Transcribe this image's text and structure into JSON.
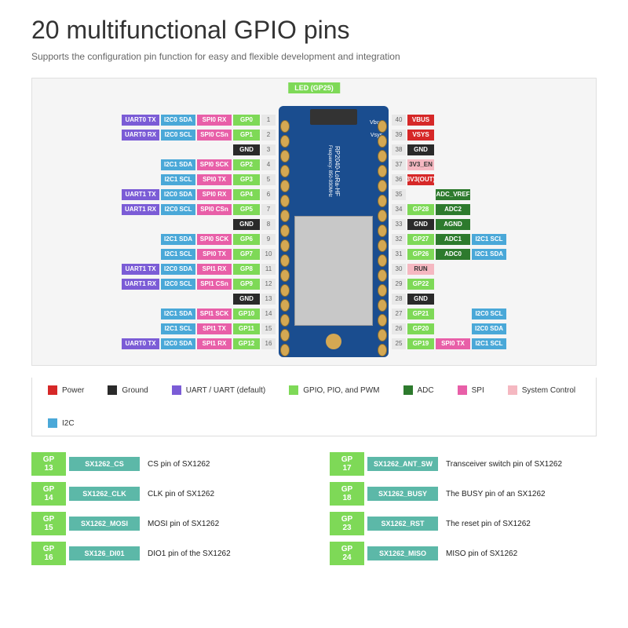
{
  "title": "20 multifunctional GPIO pins",
  "subtitle": "Supports the configuration pin function for easy and flexible development and integration",
  "led": "LED (GP25)",
  "colors": {
    "uart": "#7b5cd6",
    "uart_def": "#5a3fb8",
    "i2c": "#4aa8d8",
    "spi": "#e85fa8",
    "gpio": "#7ed957",
    "adc": "#2d7a2d",
    "gnd": "#2a2a2a",
    "power": "#d62828",
    "sysctl": "#f5b8c1",
    "num": "#e8e8e8",
    "power_fill": "#d62828",
    "sx": "#5cb8a8"
  },
  "left_pins": [
    {
      "n": "1",
      "c4": "GP0",
      "c3": "SPI0 RX",
      "c2": "I2C0 SDA",
      "c1": "UART0 TX",
      "t": [
        "uart",
        "i2c",
        "spi",
        "gpio"
      ]
    },
    {
      "n": "2",
      "c4": "GP1",
      "c3": "SPI0 CSn",
      "c2": "I2C0 SCL",
      "c1": "UART0 RX",
      "t": [
        "uart",
        "i2c",
        "spi",
        "gpio"
      ]
    },
    {
      "n": "3",
      "c4": "GND",
      "t": [
        "gnd"
      ],
      "span": 1
    },
    {
      "n": "4",
      "c4": "GP2",
      "c3": "SPI0 SCK",
      "c2": "I2C1 SDA",
      "t": [
        "i2c",
        "spi",
        "gpio"
      ]
    },
    {
      "n": "5",
      "c4": "GP3",
      "c3": "SPI0 TX",
      "c2": "I2C1 SCL",
      "t": [
        "i2c",
        "spi",
        "gpio"
      ]
    },
    {
      "n": "6",
      "c4": "GP4",
      "c3": "SPI0 RX",
      "c2": "I2C0 SDA",
      "c1": "UART1 TX",
      "t": [
        "uart",
        "i2c",
        "spi",
        "gpio"
      ]
    },
    {
      "n": "7",
      "c4": "GP5",
      "c3": "SPI0 CSn",
      "c2": "I2C0 SCL",
      "c1": "UART1 RX",
      "t": [
        "uart",
        "i2c",
        "spi",
        "gpio"
      ]
    },
    {
      "n": "8",
      "c4": "GND",
      "t": [
        "gnd"
      ],
      "span": 1
    },
    {
      "n": "9",
      "c4": "GP6",
      "c3": "SPI0 SCK",
      "c2": "I2C1 SDA",
      "t": [
        "i2c",
        "spi",
        "gpio"
      ]
    },
    {
      "n": "10",
      "c4": "GP7",
      "c3": "SPI0 TX",
      "c2": "I2C1 SCL",
      "t": [
        "i2c",
        "spi",
        "gpio"
      ]
    },
    {
      "n": "11",
      "c4": "GP8",
      "c3": "SPI1 RX",
      "c2": "I2C0 SDA",
      "c1": "UART1 TX",
      "t": [
        "uart",
        "i2c",
        "spi",
        "gpio"
      ]
    },
    {
      "n": "12",
      "c4": "GP9",
      "c3": "SPI1 CSn",
      "c2": "I2C0 SCL",
      "c1": "UART1 RX",
      "t": [
        "uart",
        "i2c",
        "spi",
        "gpio"
      ]
    },
    {
      "n": "13",
      "c4": "GND",
      "t": [
        "gnd"
      ],
      "span": 1
    },
    {
      "n": "14",
      "c4": "GP10",
      "c3": "SPI1 SCK",
      "c2": "I2C1 SDA",
      "t": [
        "i2c",
        "spi",
        "gpio"
      ]
    },
    {
      "n": "15",
      "c4": "GP11",
      "c3": "SPI1 TX",
      "c2": "I2C1 SCL",
      "t": [
        "i2c",
        "spi",
        "gpio"
      ]
    },
    {
      "n": "16",
      "c4": "GP12",
      "c3": "SPI1 RX",
      "c2": "I2C0 SDA",
      "c1": "UART0 TX",
      "t": [
        "uart",
        "i2c",
        "spi",
        "gpio"
      ]
    }
  ],
  "right_pins": [
    {
      "n": "40",
      "c4": "VBUS",
      "t": [
        "power"
      ],
      "span": 1,
      "side": "Vbus"
    },
    {
      "n": "39",
      "c4": "VSYS",
      "t": [
        "power"
      ],
      "span": 1,
      "side": "Vsys"
    },
    {
      "n": "38",
      "c4": "GND",
      "t": [
        "gnd"
      ],
      "span": 1
    },
    {
      "n": "37",
      "c4": "3V3_EN",
      "t": [
        "sysctl"
      ],
      "span": 1
    },
    {
      "n": "36",
      "c4": "3V3(OUT)",
      "t": [
        "power"
      ],
      "span": 1,
      "side": "3V3"
    },
    {
      "n": "35",
      "c4": "",
      "c3": "ADC_VREF",
      "t": [
        "adc"
      ],
      "skip4": true
    },
    {
      "n": "34",
      "c4": "GP28",
      "c3": "ADC2",
      "t": [
        "gpio",
        "adc"
      ]
    },
    {
      "n": "33",
      "c4": "GND",
      "c3": "AGND",
      "t": [
        "gnd",
        "adc"
      ]
    },
    {
      "n": "32",
      "c4": "GP27",
      "c3": "ADC1",
      "c2": "I2C1 SCL",
      "t": [
        "gpio",
        "adc",
        "i2c"
      ]
    },
    {
      "n": "31",
      "c4": "GP26",
      "c3": "ADC0",
      "c2": "I2C1 SDA",
      "t": [
        "gpio",
        "adc",
        "i2c"
      ]
    },
    {
      "n": "30",
      "c4": "RUN",
      "t": [
        "sysctl"
      ],
      "span": 1
    },
    {
      "n": "29",
      "c4": "GP22",
      "t": [
        "gpio"
      ],
      "span": 1
    },
    {
      "n": "28",
      "c4": "GND",
      "t": [
        "gnd"
      ],
      "span": 1
    },
    {
      "n": "27",
      "c4": "GP21",
      "c2": "I2C0 SCL",
      "t": [
        "gpio",
        "",
        "i2c"
      ]
    },
    {
      "n": "26",
      "c4": "GP20",
      "c2": "I2C0 SDA",
      "t": [
        "gpio",
        "",
        "i2c"
      ]
    },
    {
      "n": "25",
      "c4": "GP19",
      "c3": "SPI0 TX",
      "c2": "I2C1 SCL",
      "t": [
        "gpio",
        "spi",
        "i2c"
      ]
    }
  ],
  "board_name": "RP2040-LoRa-HF",
  "board_freq": "Frequency: 850-930MHz",
  "legend": [
    {
      "c": "#d62828",
      "t": "Power"
    },
    {
      "c": "#2a2a2a",
      "t": "Ground"
    },
    {
      "c": "#7b5cd6",
      "t": "UART / UART (default)"
    },
    {
      "c": "#7ed957",
      "t": "GPIO, PIO, and PWM"
    },
    {
      "c": "#2d7a2d",
      "t": "ADC"
    },
    {
      "c": "#e85fa8",
      "t": "SPI"
    },
    {
      "c": "#f5b8c1",
      "t": "System Control"
    },
    {
      "c": "#4aa8d8",
      "t": "I2C"
    }
  ],
  "sx_left": [
    {
      "gp": "GP 13",
      "n": "SX1262_CS",
      "d": "CS pin of SX1262"
    },
    {
      "gp": "GP 14",
      "n": "SX1262_CLK",
      "d": "CLK pin of SX1262"
    },
    {
      "gp": "GP 15",
      "n": "SX1262_MOSI",
      "d": "MOSI pin of SX1262"
    },
    {
      "gp": "GP 16",
      "n": "SX126_DI01",
      "d": "DIO1 pin of the SX1262"
    }
  ],
  "sx_right": [
    {
      "gp": "GP 17",
      "n": "SX1262_ANT_SW",
      "d": "Transceiver switch pin of SX1262"
    },
    {
      "gp": "GP 18",
      "n": "SX1262_BUSY",
      "d": "The BUSY pin of an SX1262"
    },
    {
      "gp": "GP 23",
      "n": "SX1262_RST",
      "d": "The reset pin of SX1262"
    },
    {
      "gp": "GP 24",
      "n": "SX1262_MISO",
      "d": "MISO pin of SX1262"
    }
  ]
}
